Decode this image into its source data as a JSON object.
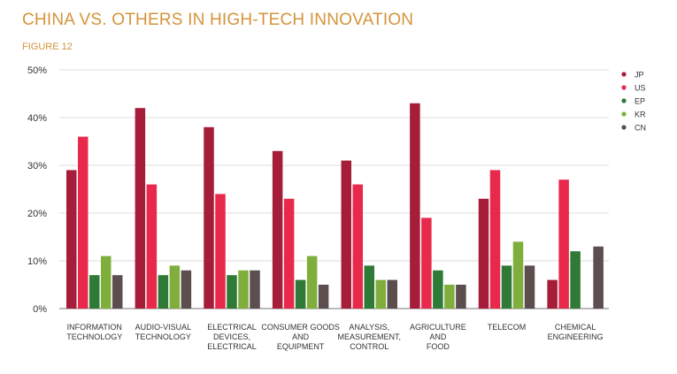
{
  "title": "CHINA VS. OTHERS IN HIGH-TECH INNOVATION",
  "subtitle": "FIGURE 12",
  "colors": {
    "JP": "#a51d38",
    "US": "#e8294c",
    "EP": "#2f7a36",
    "KR": "#7fae3d",
    "CN": "#5c4d4f"
  },
  "chart_data": {
    "type": "bar",
    "title": "CHINA VS. OTHERS IN HIGH-TECH INNOVATION",
    "subtitle": "FIGURE 12",
    "categories": [
      [
        "INFORMATION",
        "TECHNOLOGY"
      ],
      [
        "AUDIO-VISUAL",
        "TECHNOLOGY"
      ],
      [
        "ELECTRICAL",
        "DEVICES,",
        "ELECTRICAL"
      ],
      [
        "CONSUMER GOODS",
        "AND",
        "EQUIPMENT"
      ],
      [
        "ANALYSIS,",
        "MEASUREMENT,",
        "CONTROL"
      ],
      [
        "AGRICULTURE",
        "AND",
        "FOOD"
      ],
      [
        "TELECOM"
      ],
      [
        "CHEMICAL",
        "ENGINEERING"
      ]
    ],
    "series": [
      {
        "name": "JP",
        "values": [
          29,
          42,
          38,
          33,
          31,
          43,
          23,
          6
        ]
      },
      {
        "name": "US",
        "values": [
          36,
          26,
          24,
          23,
          26,
          19,
          29,
          27
        ]
      },
      {
        "name": "EP",
        "values": [
          7,
          7,
          7,
          6,
          9,
          8,
          9,
          12
        ]
      },
      {
        "name": "KR",
        "values": [
          11,
          9,
          8,
          11,
          6,
          5,
          14,
          0
        ]
      },
      {
        "name": "CN",
        "values": [
          7,
          8,
          8,
          5,
          6,
          5,
          9,
          13
        ]
      }
    ],
    "yticks": [
      "0%",
      "10%",
      "20%",
      "30%",
      "40%",
      "50%"
    ],
    "ylim": [
      0,
      50
    ],
    "grid": true,
    "legend_position": "right"
  }
}
